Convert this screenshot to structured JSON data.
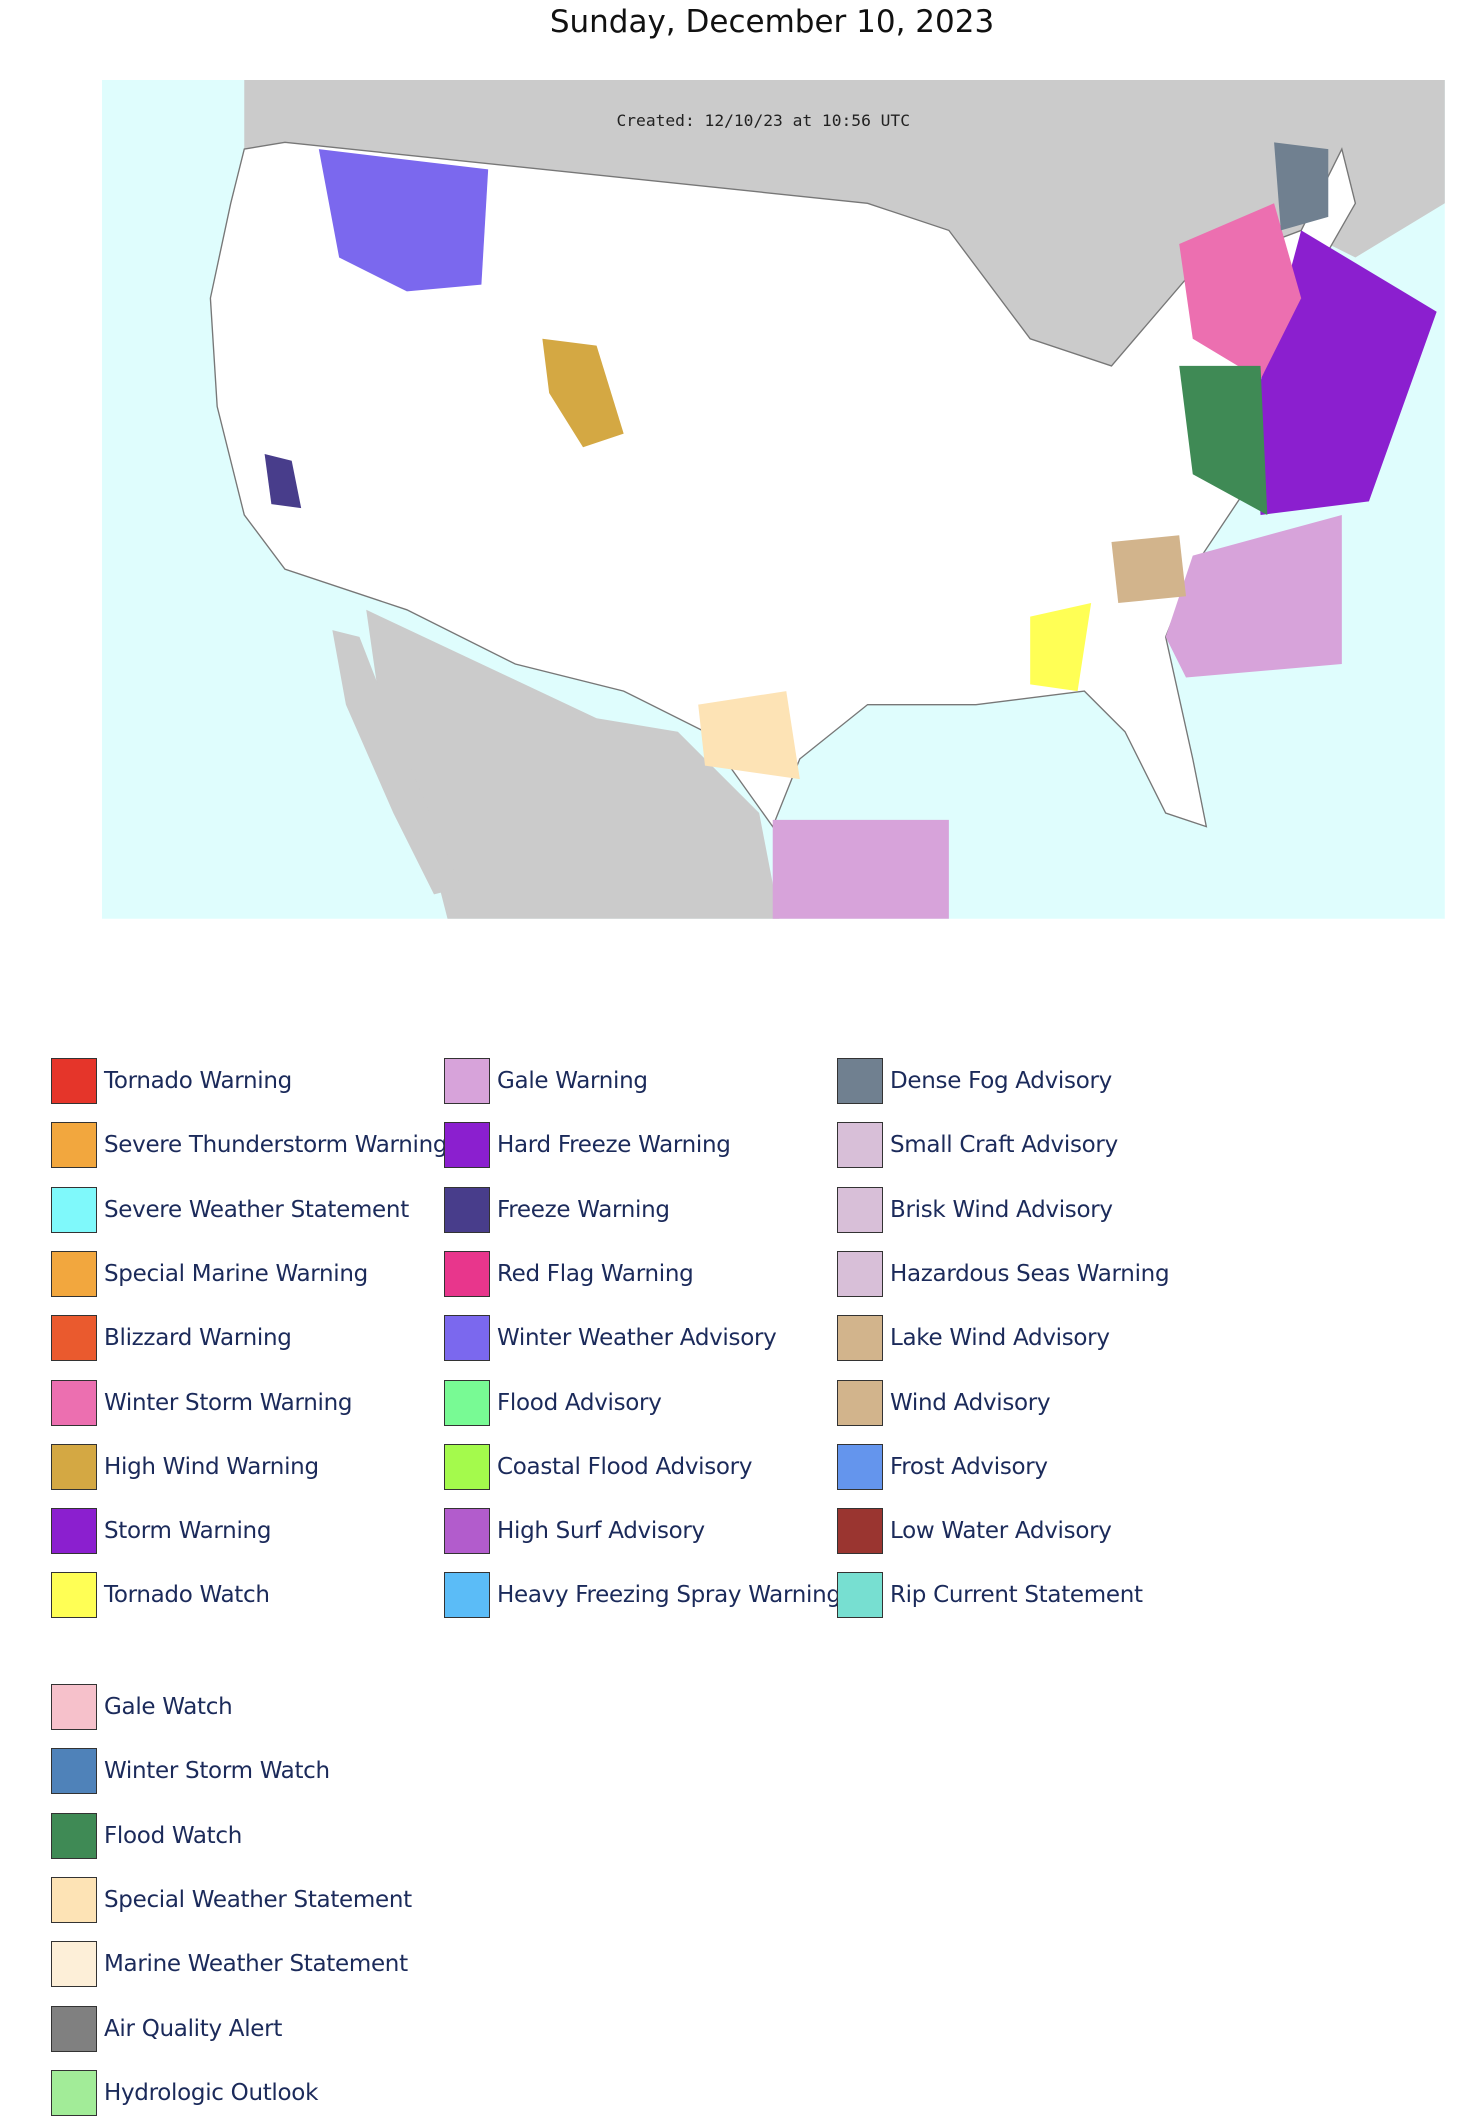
{
  "header": {
    "title": "Sunday, December 10, 2023"
  },
  "map": {
    "created_label": "Created: 12/10/23 at 10:56 UTC"
  },
  "legend": {
    "columns": [
      [
        {
          "label": "Tornado Warning",
          "color": "#e5352a"
        },
        {
          "label": "Severe Thunderstorm Warning",
          "color": "#f2a73e"
        },
        {
          "label": "Severe Weather Statement",
          "color": "#7ff9fb"
        },
        {
          "label": "Special Marine Warning",
          "color": "#f2a73e"
        },
        {
          "label": "Blizzard Warning",
          "color": "#ea5a2e"
        },
        {
          "label": "Winter Storm Warning",
          "color": "#ec6fb0"
        },
        {
          "label": "High Wind Warning",
          "color": "#d4a843"
        },
        {
          "label": "Storm Warning",
          "color": "#8b1fcf"
        },
        {
          "label": "Tornado Watch",
          "color": "#ffff55"
        }
      ],
      [
        {
          "label": "Gale Warning",
          "color": "#d7a3da"
        },
        {
          "label": "Hard Freeze Warning",
          "color": "#8b1fcf"
        },
        {
          "label": "Freeze Warning",
          "color": "#483d8b"
        },
        {
          "label": "Red Flag Warning",
          "color": "#e8368c"
        },
        {
          "label": "Winter Weather Advisory",
          "color": "#7b68ee"
        },
        {
          "label": "Flood Advisory",
          "color": "#78fa94"
        },
        {
          "label": "Coastal Flood Advisory",
          "color": "#a4fa4c"
        },
        {
          "label": "High Surf Advisory",
          "color": "#b25ccc"
        },
        {
          "label": "Heavy Freezing Spray Warning",
          "color": "#5bbcf7"
        }
      ],
      [
        {
          "label": "Dense Fog Advisory",
          "color": "#708090"
        },
        {
          "label": "Small Craft Advisory",
          "color": "#d8bfd8"
        },
        {
          "label": "Brisk Wind Advisory",
          "color": "#d8bfd8"
        },
        {
          "label": "Hazardous Seas Warning",
          "color": "#d8bfd8"
        },
        {
          "label": "Lake Wind Advisory",
          "color": "#d2b48c"
        },
        {
          "label": "Wind Advisory",
          "color": "#d2b48c"
        },
        {
          "label": "Frost Advisory",
          "color": "#6495ed"
        },
        {
          "label": "Low Water Advisory",
          "color": "#9a3530"
        },
        {
          "label": "Rip Current Statement",
          "color": "#77dfd1"
        }
      ]
    ],
    "watches": [
      {
        "label": "Gale Watch",
        "color": "#f6c1cb"
      },
      {
        "label": "Winter Storm Watch",
        "color": "#4f82b9"
      },
      {
        "label": "Flood Watch",
        "color": "#3f8a55"
      },
      {
        "label": "Special Weather Statement",
        "color": "#fde3b5"
      },
      {
        "label": "Marine Weather Statement",
        "color": "#fdefd8"
      },
      {
        "label": "Air Quality Alert",
        "color": "#808080"
      },
      {
        "label": "Hydrologic Outlook",
        "color": "#a2ec98"
      }
    ]
  }
}
